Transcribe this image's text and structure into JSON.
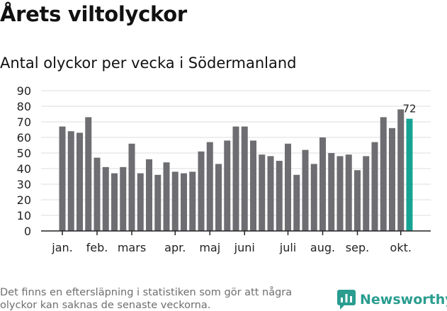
{
  "title": "Årets viltolyckor",
  "subtitle": "Antal olyckor per vecka i Södermanland",
  "footnote": "Det finns en eftersläpning i statistiken som gör att några olyckor kan saknas de senaste veckorna.",
  "brand": {
    "name": "Newsworthy",
    "icon": "newsworthy-logo-icon"
  },
  "colors": {
    "bar": "#6e6d72",
    "highlight": "#16a394",
    "grid": "#dddddd",
    "axis": "#222222",
    "brand": "#2a9d8f"
  },
  "chart_data": {
    "type": "bar",
    "title": "Antal olyckor per vecka i Södermanland",
    "xlabel": "",
    "ylabel": "",
    "ylim": [
      0,
      90
    ],
    "yticks": [
      0,
      10,
      20,
      30,
      40,
      50,
      60,
      70,
      80,
      90
    ],
    "grid": true,
    "values": [
      67,
      64,
      63,
      73,
      47,
      41,
      37,
      41,
      56,
      37,
      46,
      36,
      44,
      38,
      37,
      38,
      51,
      57,
      43,
      58,
      67,
      67,
      58,
      49,
      48,
      45,
      56,
      36,
      52,
      43,
      60,
      50,
      48,
      49,
      39,
      48,
      57,
      73,
      66,
      78,
      72
    ],
    "highlight_index": 40,
    "highlight_label": "72",
    "month_labels": [
      {
        "label": "jan.",
        "bar_index": 0
      },
      {
        "label": "feb.",
        "bar_index": 4
      },
      {
        "label": "mars",
        "bar_index": 8
      },
      {
        "label": "apr.",
        "bar_index": 13
      },
      {
        "label": "maj",
        "bar_index": 17
      },
      {
        "label": "juni",
        "bar_index": 21
      },
      {
        "label": "juli",
        "bar_index": 26
      },
      {
        "label": "aug.",
        "bar_index": 30
      },
      {
        "label": "sep.",
        "bar_index": 34
      },
      {
        "label": "okt.",
        "bar_index": 39
      }
    ]
  }
}
